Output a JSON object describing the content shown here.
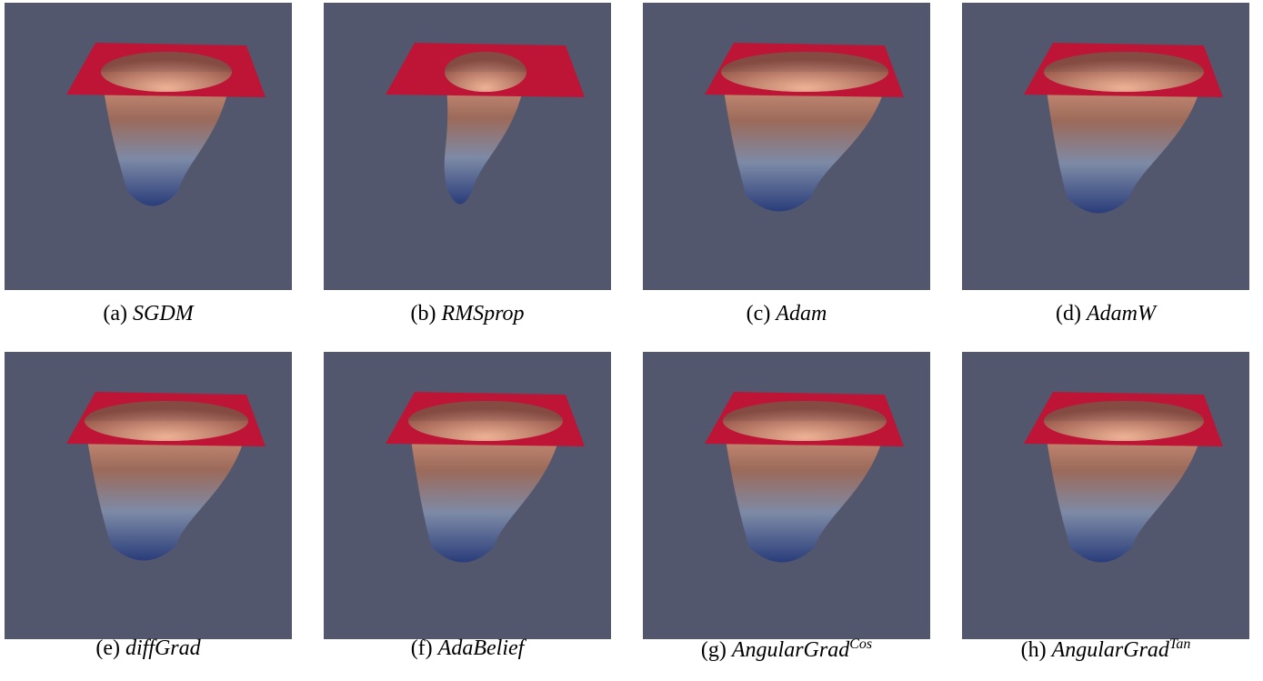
{
  "panels": [
    {
      "label": "(a)",
      "name": "SGDM"
    },
    {
      "label": "(b)",
      "name": "RMSprop"
    },
    {
      "label": "(c)",
      "name": "Adam"
    },
    {
      "label": "(d)",
      "name": "AdamW"
    },
    {
      "label": "(e)",
      "name": "diffGrad"
    },
    {
      "label": "(f)",
      "name": "AdaBelief"
    },
    {
      "label": "(g)",
      "name": "AngularGrad",
      "sup": "Cos"
    },
    {
      "label": "(h)",
      "name": "AngularGrad",
      "sup": "Tan"
    }
  ]
}
